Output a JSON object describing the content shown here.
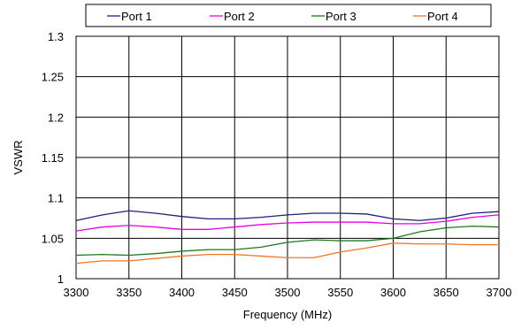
{
  "chart_data": {
    "type": "line",
    "title": "",
    "xlabel": "Frequency (MHz)",
    "ylabel": "VSWR",
    "xlim": [
      3300,
      3700
    ],
    "ylim": [
      1,
      1.3
    ],
    "x_ticks": [
      3300,
      3350,
      3400,
      3450,
      3500,
      3550,
      3600,
      3650,
      3700
    ],
    "x_tick_labels": [
      "3300",
      "3350",
      "3400",
      "3450",
      "3500",
      "3550",
      "3600",
      "3650",
      "3700"
    ],
    "y_ticks": [
      1,
      1.05,
      1.1,
      1.15,
      1.2,
      1.25,
      1.3
    ],
    "y_tick_labels": [
      "1",
      "1.05",
      "1.1",
      "1.15",
      "1.2",
      "1.25",
      "1.3"
    ],
    "grid": true,
    "legend_position": "top",
    "x": [
      3300,
      3325,
      3350,
      3375,
      3400,
      3425,
      3450,
      3475,
      3500,
      3525,
      3550,
      3575,
      3600,
      3625,
      3650,
      3675,
      3700
    ],
    "series": [
      {
        "name": "Port 1",
        "color": "#1f1f7a",
        "values": [
          1.072,
          1.079,
          1.084,
          1.081,
          1.077,
          1.074,
          1.074,
          1.076,
          1.079,
          1.081,
          1.081,
          1.08,
          1.074,
          1.072,
          1.075,
          1.081,
          1.083
        ]
      },
      {
        "name": "Port 2",
        "color": "#e600e6",
        "values": [
          1.059,
          1.064,
          1.066,
          1.064,
          1.061,
          1.061,
          1.064,
          1.067,
          1.069,
          1.07,
          1.07,
          1.07,
          1.068,
          1.068,
          1.071,
          1.076,
          1.079
        ]
      },
      {
        "name": "Port 3",
        "color": "#1a7a1a",
        "values": [
          1.029,
          1.03,
          1.029,
          1.031,
          1.034,
          1.036,
          1.036,
          1.039,
          1.045,
          1.048,
          1.047,
          1.047,
          1.05,
          1.058,
          1.063,
          1.065,
          1.064
        ]
      },
      {
        "name": "Port 4",
        "color": "#ee7722",
        "values": [
          1.019,
          1.022,
          1.022,
          1.025,
          1.028,
          1.03,
          1.03,
          1.028,
          1.026,
          1.026,
          1.033,
          1.038,
          1.044,
          1.043,
          1.043,
          1.042,
          1.042
        ]
      }
    ]
  }
}
